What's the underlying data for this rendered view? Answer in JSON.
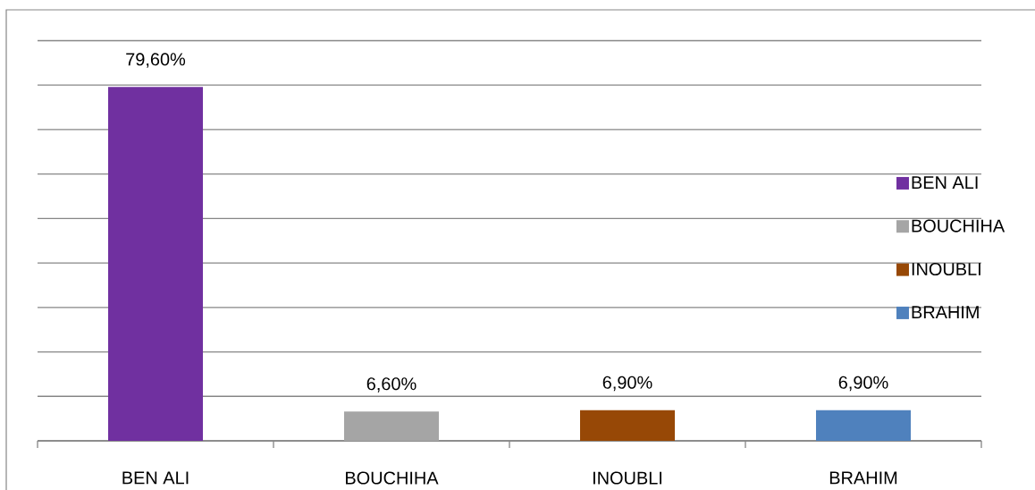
{
  "chart_data": {
    "type": "bar",
    "categories": [
      "BEN ALI",
      "BOUCHIHA",
      "INOUBLI",
      "BRAHIM"
    ],
    "series": [
      {
        "name": "BEN ALI",
        "color": "#7030a0",
        "values": [
          79.6,
          null,
          null,
          null
        ],
        "value_labels": [
          "79,60%",
          null,
          null,
          null
        ]
      },
      {
        "name": "BOUCHIHA",
        "color": "#a5a5a5",
        "values": [
          null,
          6.6,
          null,
          null
        ],
        "value_labels": [
          null,
          "6,60%",
          null,
          null
        ]
      },
      {
        "name": "INOUBLI",
        "color": "#974806",
        "values": [
          null,
          null,
          6.9,
          null
        ],
        "value_labels": [
          null,
          null,
          "6,90%",
          null
        ]
      },
      {
        "name": "BRAHIM",
        "color": "#4f81bd",
        "values": [
          null,
          null,
          null,
          6.9
        ],
        "value_labels": [
          null,
          null,
          null,
          "6,90%"
        ]
      }
    ],
    "ylim": [
      0,
      90
    ],
    "yticks": [
      0,
      10,
      20,
      30,
      40,
      50,
      60,
      70,
      80,
      90
    ],
    "grid": "y",
    "tick_labels": "x",
    "legend": "right"
  }
}
